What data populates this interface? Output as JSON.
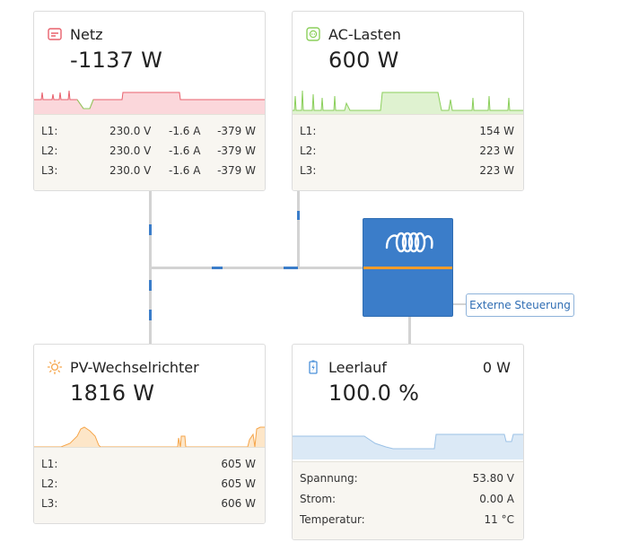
{
  "grid": {
    "title": "Netz",
    "power": "-1137 W",
    "phases": [
      {
        "label": "L1:",
        "voltage": "230.0 V",
        "current": "-1.6 A",
        "power": "-379 W"
      },
      {
        "label": "L2:",
        "voltage": "230.0 V",
        "current": "-1.6 A",
        "power": "-379 W"
      },
      {
        "label": "L3:",
        "voltage": "230.0 V",
        "current": "-1.6 A",
        "power": "-379 W"
      }
    ],
    "color": "#e8606c"
  },
  "ac_loads": {
    "title": "AC-Lasten",
    "power": "600 W",
    "phases": [
      {
        "label": "L1:",
        "power": "154 W"
      },
      {
        "label": "L2:",
        "power": "223 W"
      },
      {
        "label": "L3:",
        "power": "223 W"
      }
    ],
    "color": "#8bcf5b"
  },
  "pv_inverter": {
    "title": "PV-Wechselrichter",
    "power": "1816 W",
    "phases": [
      {
        "label": "L1:",
        "power": "605 W"
      },
      {
        "label": "L2:",
        "power": "605 W"
      },
      {
        "label": "L3:",
        "power": "606 W"
      }
    ],
    "color": "#f5a54a"
  },
  "battery": {
    "title": "Leerlauf",
    "power": "0 W",
    "soc": "100.0 %",
    "rows": [
      {
        "label": "Spannung:",
        "value": "53.80 V"
      },
      {
        "label": "Strom:",
        "value": "0.00 A"
      },
      {
        "label": "Temperatur:",
        "value": "11 °C"
      }
    ],
    "color": "#4a90d9"
  },
  "inverter": {
    "external_control_label": "Externe Steuerung",
    "bar_color": "#f39c2a"
  }
}
